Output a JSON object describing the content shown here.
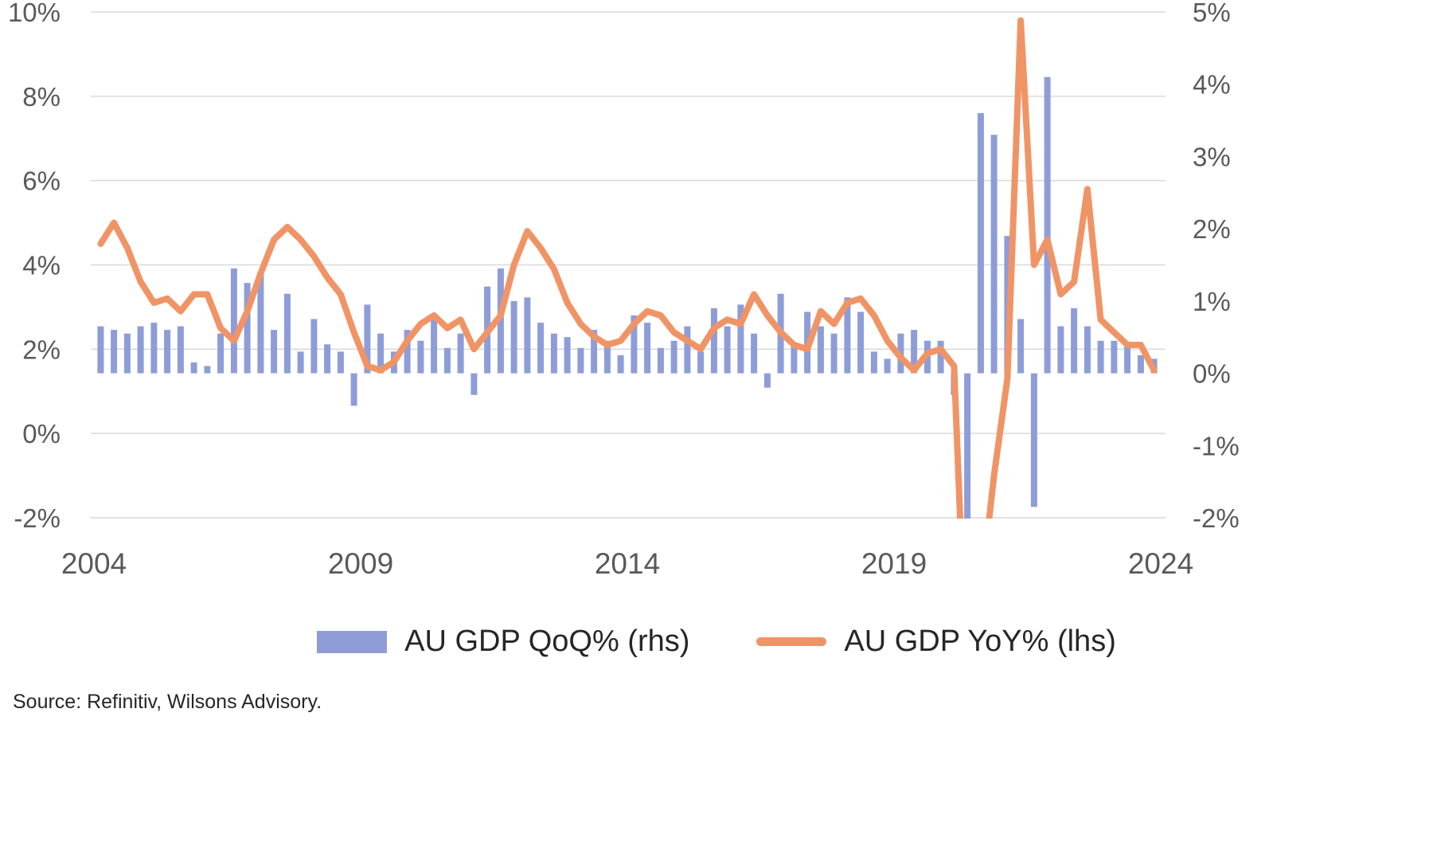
{
  "legend": {
    "qoq_label": "AU GDP QoQ% (rhs)",
    "yoy_label": "AU GDP YoY% (lhs)"
  },
  "source": "Source: Refinitiv, Wilsons Advisory.",
  "colors": {
    "bar": "#8E9DD8",
    "line": "#F09466",
    "grid": "#D9D9D9",
    "axis_text": "#595959",
    "text": "#262626",
    "background": "#FFFFFF"
  },
  "chart_data": {
    "type": "combo",
    "title": "",
    "grid": "horizontal",
    "legend_position": "bottom",
    "x": [
      "2004Q1",
      "2004Q2",
      "2004Q3",
      "2004Q4",
      "2005Q1",
      "2005Q2",
      "2005Q3",
      "2005Q4",
      "2006Q1",
      "2006Q2",
      "2006Q3",
      "2006Q4",
      "2007Q1",
      "2007Q2",
      "2007Q3",
      "2007Q4",
      "2008Q1",
      "2008Q2",
      "2008Q3",
      "2008Q4",
      "2009Q1",
      "2009Q2",
      "2009Q3",
      "2009Q4",
      "2010Q1",
      "2010Q2",
      "2010Q3",
      "2010Q4",
      "2011Q1",
      "2011Q2",
      "2011Q3",
      "2011Q4",
      "2012Q1",
      "2012Q2",
      "2012Q3",
      "2012Q4",
      "2013Q1",
      "2013Q2",
      "2013Q3",
      "2013Q4",
      "2014Q1",
      "2014Q2",
      "2014Q3",
      "2014Q4",
      "2015Q1",
      "2015Q2",
      "2015Q3",
      "2015Q4",
      "2016Q1",
      "2016Q2",
      "2016Q3",
      "2016Q4",
      "2017Q1",
      "2017Q2",
      "2017Q3",
      "2017Q4",
      "2018Q1",
      "2018Q2",
      "2018Q3",
      "2018Q4",
      "2019Q1",
      "2019Q2",
      "2019Q3",
      "2019Q4",
      "2020Q1",
      "2020Q2",
      "2020Q3",
      "2020Q4",
      "2021Q1",
      "2021Q2",
      "2021Q3",
      "2021Q4",
      "2022Q1",
      "2022Q2",
      "2022Q3",
      "2022Q4",
      "2023Q1",
      "2023Q2",
      "2023Q3",
      "2023Q4"
    ],
    "series": [
      {
        "name": "AU GDP QoQ% (rhs)",
        "type": "bar",
        "axis": "right",
        "color": "#8E9DD8",
        "values": [
          0.65,
          0.6,
          0.55,
          0.65,
          0.7,
          0.6,
          0.65,
          0.15,
          0.1,
          0.55,
          1.45,
          1.25,
          1.4,
          0.6,
          1.1,
          0.3,
          0.75,
          0.4,
          0.3,
          -0.45,
          0.95,
          0.55,
          0.3,
          0.6,
          0.45,
          0.75,
          0.35,
          0.55,
          -0.3,
          1.2,
          1.45,
          1.0,
          1.05,
          0.7,
          0.55,
          0.5,
          0.35,
          0.6,
          0.45,
          0.25,
          0.8,
          0.7,
          0.35,
          0.45,
          0.65,
          0.3,
          0.9,
          0.65,
          0.95,
          0.55,
          -0.2,
          1.1,
          0.4,
          0.85,
          0.65,
          0.55,
          1.05,
          0.85,
          0.3,
          0.2,
          0.55,
          0.6,
          0.45,
          0.45,
          -0.3,
          -6.8,
          3.6,
          3.3,
          1.9,
          0.75,
          -1.85,
          4.1,
          0.65,
          0.9,
          0.65,
          0.45,
          0.45,
          0.4,
          0.25,
          0.2
        ]
      },
      {
        "name": "AU GDP YoY% (lhs)",
        "type": "line",
        "axis": "left",
        "color": "#F09466",
        "values": [
          4.5,
          5.0,
          4.4,
          3.6,
          3.1,
          3.2,
          2.9,
          3.3,
          3.3,
          2.5,
          2.2,
          2.9,
          3.8,
          4.6,
          4.9,
          4.6,
          4.2,
          3.7,
          3.3,
          2.4,
          1.6,
          1.5,
          1.7,
          2.2,
          2.6,
          2.8,
          2.5,
          2.7,
          2.0,
          2.4,
          2.8,
          4.0,
          4.8,
          4.4,
          3.9,
          3.1,
          2.6,
          2.3,
          2.1,
          2.2,
          2.6,
          2.9,
          2.8,
          2.4,
          2.2,
          2.0,
          2.5,
          2.7,
          2.6,
          3.3,
          2.8,
          2.4,
          2.1,
          2.0,
          2.9,
          2.6,
          3.1,
          3.2,
          2.8,
          2.2,
          1.8,
          1.5,
          1.9,
          2.0,
          1.6,
          -6.3,
          -3.8,
          -1.0,
          1.3,
          9.8,
          4.0,
          4.6,
          3.3,
          3.6,
          5.8,
          2.7,
          2.4,
          2.1,
          2.1,
          1.5
        ]
      }
    ],
    "left_axis": {
      "min": -2,
      "max": 10,
      "tick_values": [
        10,
        8,
        6,
        4,
        2,
        0,
        -2
      ],
      "tick_labels": [
        "10%",
        "8%",
        "6%",
        "4%",
        "2%",
        "0%",
        "-2%"
      ]
    },
    "right_axis": {
      "min": -2,
      "max": 5,
      "tick_values": [
        5,
        4,
        3,
        2,
        1,
        0,
        -1,
        -2
      ],
      "tick_labels": [
        "5%",
        "4%",
        "3%",
        "2%",
        "1%",
        "0%",
        "-1%",
        "-2%"
      ]
    },
    "x_axis": {
      "tick_values": [
        2004,
        2009,
        2014,
        2019,
        2024
      ],
      "tick_labels": [
        "2004",
        "2009",
        "2014",
        "2019",
        "2024"
      ]
    }
  }
}
